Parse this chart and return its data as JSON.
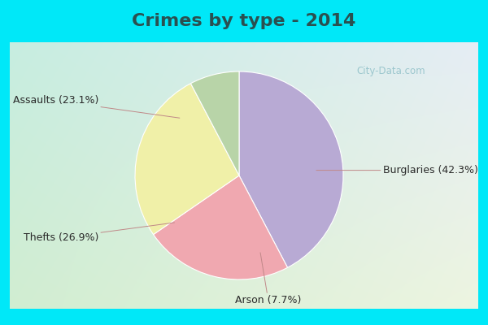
{
  "title": "Crimes by type - 2014",
  "slices": [
    {
      "label": "Burglaries",
      "pct": 42.3,
      "color": "#b8aad4"
    },
    {
      "label": "Assaults",
      "pct": 23.1,
      "color": "#f0a8b0"
    },
    {
      "label": "Thefts",
      "pct": 26.9,
      "color": "#f0f0a8"
    },
    {
      "label": "Arson",
      "pct": 7.7,
      "color": "#b8d4a8"
    }
  ],
  "bg_cyan": "#00e8f8",
  "bg_grad_top": "#c8ece0",
  "bg_grad_bottom": "#d8eccC",
  "title_fontsize": 16,
  "title_color": "#2a5050",
  "label_fontsize": 9,
  "watermark": "City-Data.com",
  "startangle": 90,
  "label_positions": [
    {
      "label": "Burglaries (42.3%)",
      "xt": 1.38,
      "yt": 0.0,
      "ha": "left"
    },
    {
      "label": "Assaults (23.1%)",
      "xt": -1.35,
      "yt": 0.72,
      "ha": "right"
    },
    {
      "label": "Thefts (26.9%)",
      "xt": -1.35,
      "yt": -0.62,
      "ha": "right"
    },
    {
      "label": "Arson (7.7%)",
      "xt": 0.22,
      "yt": -1.22,
      "ha": "center"
    }
  ]
}
